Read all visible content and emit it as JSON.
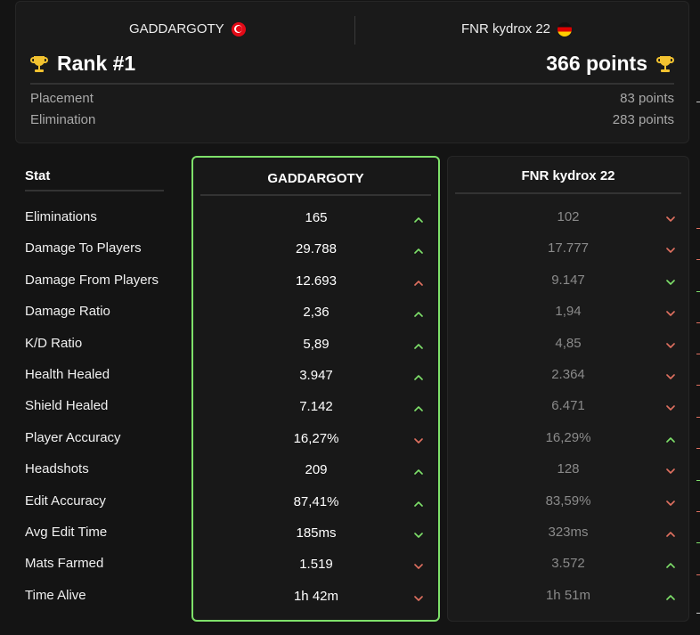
{
  "header": {
    "player_left": "GADDARGOTY",
    "player_left_flag": "turkey-flag",
    "player_right": "FNR kydrox 22",
    "player_right_flag": "germany-flag",
    "rank": "Rank #1",
    "points": "366 points",
    "breakdown": [
      {
        "label": "Placement",
        "value": "83 points"
      },
      {
        "label": "Elimination",
        "value": "283 points"
      }
    ]
  },
  "table": {
    "stat_header": "Stat",
    "col_left_title": "GADDARGOTY",
    "col_right_title": "FNR kydrox 22",
    "rows": [
      {
        "stat": "Eliminations",
        "left": "165",
        "left_dir": "up",
        "right": "102",
        "right_dir": "down"
      },
      {
        "stat": "Damage To Players",
        "left": "29.788",
        "left_dir": "up",
        "right": "17.777",
        "right_dir": "down"
      },
      {
        "stat": "Damage From Players",
        "left": "12.693",
        "left_dir": "up-red",
        "right": "9.147",
        "right_dir": "down-green"
      },
      {
        "stat": "Damage Ratio",
        "left": "2,36",
        "left_dir": "up",
        "right": "1,94",
        "right_dir": "down"
      },
      {
        "stat": "K/D Ratio",
        "left": "5,89",
        "left_dir": "up",
        "right": "4,85",
        "right_dir": "down"
      },
      {
        "stat": "Health Healed",
        "left": "3.947",
        "left_dir": "up",
        "right": "2.364",
        "right_dir": "down"
      },
      {
        "stat": "Shield Healed",
        "left": "7.142",
        "left_dir": "up",
        "right": "6.471",
        "right_dir": "down"
      },
      {
        "stat": "Player Accuracy",
        "left": "16,27%",
        "left_dir": "down",
        "right": "16,29%",
        "right_dir": "up"
      },
      {
        "stat": "Headshots",
        "left": "209",
        "left_dir": "up",
        "right": "128",
        "right_dir": "down"
      },
      {
        "stat": "Edit Accuracy",
        "left": "87,41%",
        "left_dir": "up",
        "right": "83,59%",
        "right_dir": "down"
      },
      {
        "stat": "Avg Edit Time",
        "left": "185ms",
        "left_dir": "down-green",
        "right": "323ms",
        "right_dir": "up-red"
      },
      {
        "stat": "Mats Farmed",
        "left": "1.519",
        "left_dir": "down",
        "right": "3.572",
        "right_dir": "up"
      },
      {
        "stat": "Time Alive",
        "left": "1h 42m",
        "left_dir": "down",
        "right": "1h 51m",
        "right_dir": "up"
      }
    ]
  },
  "colors": {
    "accent_green": "#7ee06a",
    "bad_red": "#e07060",
    "right_value_gray": "#8a8a8a"
  }
}
